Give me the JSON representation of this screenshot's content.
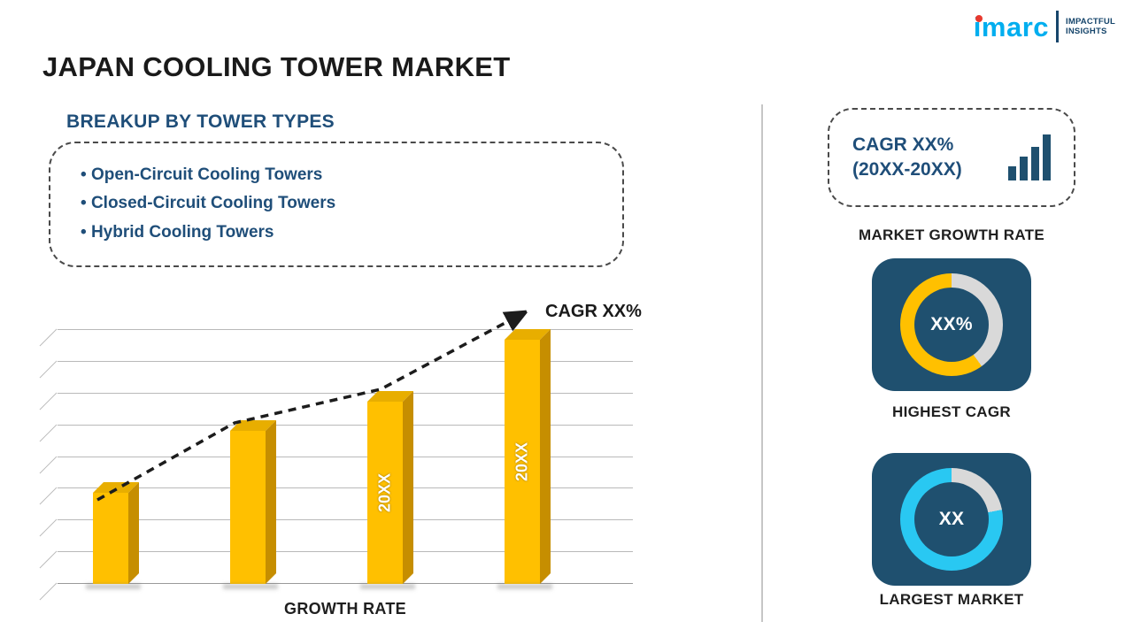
{
  "brand": {
    "name": "imarc",
    "tagline": [
      "IMPACTFUL",
      "INSIGHTS"
    ]
  },
  "title": "JAPAN COOLING TOWER MARKET",
  "breakup": {
    "heading": "BREAKUP BY TOWER TYPES",
    "items": [
      "Open-Circuit Cooling Towers",
      "Closed-Circuit Cooling Towers",
      "Hybrid Cooling Towers"
    ]
  },
  "chart_data": [
    {
      "type": "bar",
      "title": "",
      "xlabel": "GROWTH RATE",
      "ylabel": "",
      "categories": [
        "",
        "",
        "20XX",
        "20XX"
      ],
      "values": [
        25,
        42,
        50,
        67
      ],
      "ylim": [
        0,
        70
      ],
      "grid": true,
      "bar_color": "#FFC000",
      "trend": "dashed rising arrow",
      "trend_annotation": "CAGR XX%"
    },
    {
      "type": "pie",
      "title": "HIGHEST CAGR",
      "center_label": "XX%",
      "series": [
        {
          "name": "value",
          "value": 60
        },
        {
          "name": "remainder",
          "value": 40
        }
      ],
      "colors": [
        "#FFC000",
        "#D9D9D9"
      ],
      "legend_position": "none"
    },
    {
      "type": "pie",
      "title": "LARGEST MARKET",
      "center_label": "XX",
      "series": [
        {
          "name": "value",
          "value": 78
        },
        {
          "name": "remainder",
          "value": 22
        }
      ],
      "colors": [
        "#29C8F2",
        "#D9D9D9"
      ],
      "legend_position": "none"
    }
  ],
  "sidebar": {
    "cagr_box": {
      "line1": "CAGR XX%",
      "line2": "(20XX-20XX)"
    },
    "labels": {
      "growth": "MARKET GROWTH RATE",
      "highest": "HIGHEST CAGR",
      "largest": "LARGEST MARKET"
    }
  },
  "colors": {
    "gold": "#FFC000",
    "gold_side": "#C68E00",
    "cyan": "#29C8F2",
    "navy_text": "#1F4E79",
    "card_bg": "#1F506F",
    "ring_gray": "#D9D9D9",
    "logo_cyan": "#00AEEF",
    "logo_red": "#E8392E"
  }
}
